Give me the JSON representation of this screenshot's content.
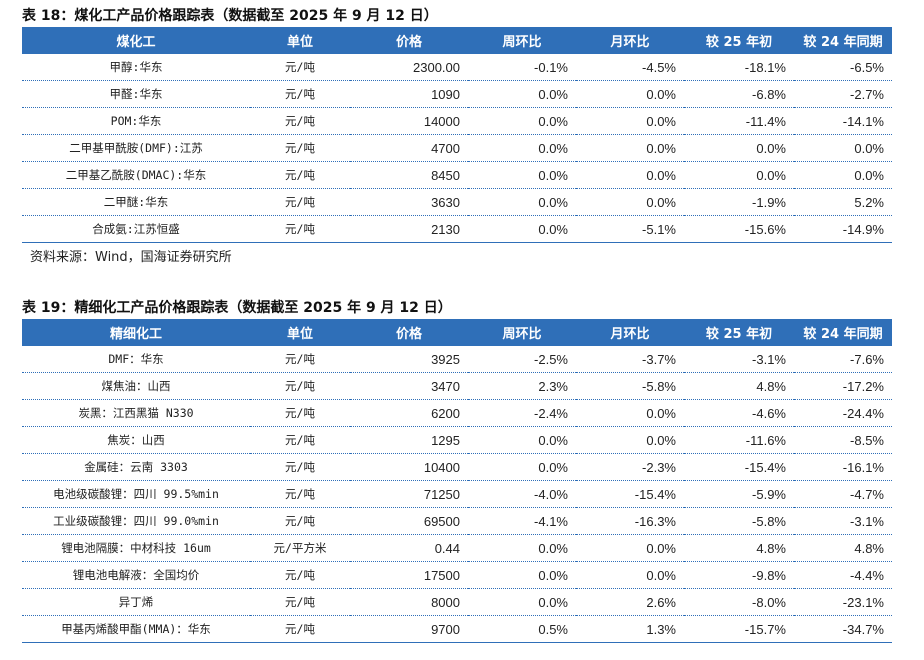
{
  "table1": {
    "caption": "表 18：煤化工产品价格跟踪表（数据截至 2025 年 9 月 12 日）",
    "headers": [
      "煤化工",
      "单位",
      "价格",
      "周环比",
      "月环比",
      "较 25 年初",
      "较 24 年同期"
    ],
    "rows": [
      [
        "甲醇:华东",
        "元/吨",
        "2300.00",
        "-0.1%",
        "-4.5%",
        "-18.1%",
        "-6.5%"
      ],
      [
        "甲醛:华东",
        "元/吨",
        "1090",
        "0.0%",
        "0.0%",
        "-6.8%",
        "-2.7%"
      ],
      [
        "POM:华东",
        "元/吨",
        "14000",
        "0.0%",
        "0.0%",
        "-11.4%",
        "-14.1%"
      ],
      [
        "二甲基甲酰胺(DMF):江苏",
        "元/吨",
        "4700",
        "0.0%",
        "0.0%",
        "0.0%",
        "0.0%"
      ],
      [
        "二甲基乙酰胺(DMAC):华东",
        "元/吨",
        "8450",
        "0.0%",
        "0.0%",
        "0.0%",
        "0.0%"
      ],
      [
        "二甲醚:华东",
        "元/吨",
        "3630",
        "0.0%",
        "0.0%",
        "-1.9%",
        "5.2%"
      ],
      [
        "合成氨:江苏恒盛",
        "元/吨",
        "2130",
        "0.0%",
        "-5.1%",
        "-15.6%",
        "-14.9%"
      ]
    ],
    "source": "资料来源：Wind，国海证券研究所"
  },
  "table2": {
    "caption": "表 19：精细化工产品价格跟踪表（数据截至 2025 年 9 月 12 日）",
    "headers": [
      "精细化工",
      "单位",
      "价格",
      "周环比",
      "月环比",
      "较 25 年初",
      "较 24 年同期"
    ],
    "rows": [
      [
        "DMF：华东",
        "元/吨",
        "3925",
        "-2.5%",
        "-3.7%",
        "-3.1%",
        "-7.6%"
      ],
      [
        "煤焦油：山西",
        "元/吨",
        "3470",
        "2.3%",
        "-5.8%",
        "4.8%",
        "-17.2%"
      ],
      [
        "炭黑：江西黑猫 N330",
        "元/吨",
        "6200",
        "-2.4%",
        "0.0%",
        "-4.6%",
        "-24.4%"
      ],
      [
        "焦炭：山西",
        "元/吨",
        "1295",
        "0.0%",
        "0.0%",
        "-11.6%",
        "-8.5%"
      ],
      [
        "金属硅：云南 3303",
        "元/吨",
        "10400",
        "0.0%",
        "-2.3%",
        "-15.4%",
        "-16.1%"
      ],
      [
        "电池级碳酸锂：四川 99.5%min",
        "元/吨",
        "71250",
        "-4.0%",
        "-15.4%",
        "-5.9%",
        "-4.7%"
      ],
      [
        "工业级碳酸锂：四川 99.0%min",
        "元/吨",
        "69500",
        "-4.1%",
        "-16.3%",
        "-5.8%",
        "-3.1%"
      ],
      [
        "锂电池隔膜：中材科技 16um",
        "元/平方米",
        "0.44",
        "0.0%",
        "0.0%",
        "4.8%",
        "4.8%"
      ],
      [
        "锂电池电解液：全国均价",
        "元/吨",
        "17500",
        "0.0%",
        "0.0%",
        "-9.8%",
        "-4.4%"
      ],
      [
        "异丁烯",
        "元/吨",
        "8000",
        "0.0%",
        "2.6%",
        "-8.0%",
        "-23.1%"
      ],
      [
        "甲基丙烯酸甲酯(MMA)：华东",
        "元/吨",
        "9700",
        "0.5%",
        "1.3%",
        "-15.7%",
        "-34.7%"
      ]
    ]
  }
}
